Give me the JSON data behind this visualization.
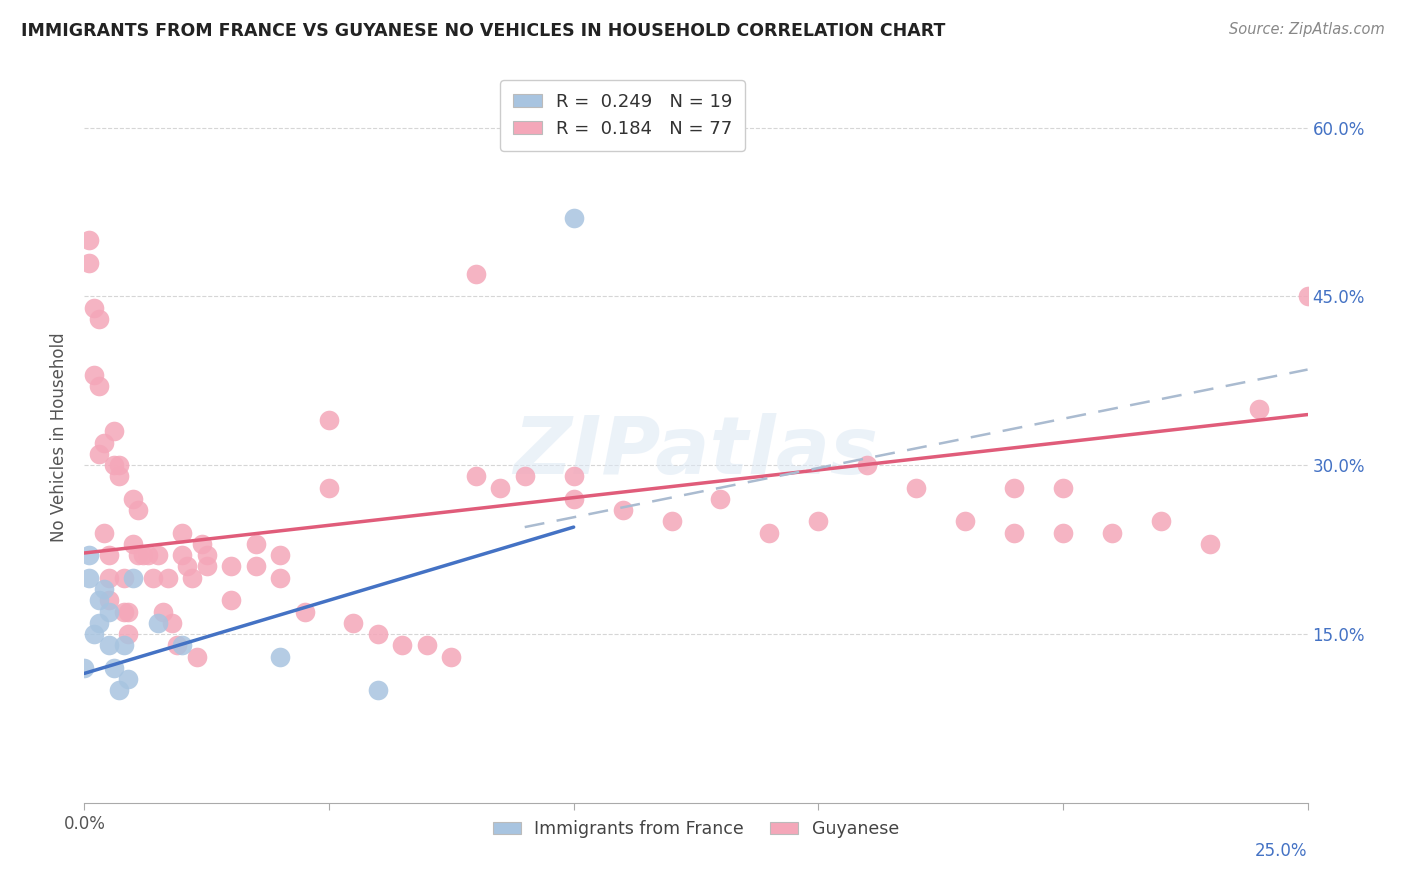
{
  "title": "IMMIGRANTS FROM FRANCE VS GUYANESE NO VEHICLES IN HOUSEHOLD CORRELATION CHART",
  "source": "Source: ZipAtlas.com",
  "ylabel": "No Vehicles in Household",
  "xlim": [
    0.0,
    0.25
  ],
  "ylim": [
    0.0,
    0.65
  ],
  "y_ticks_right": [
    0.15,
    0.3,
    0.45,
    0.6
  ],
  "y_tick_labels_right": [
    "15.0%",
    "30.0%",
    "45.0%",
    "60.0%"
  ],
  "legend_R1": "0.249",
  "legend_N1": "19",
  "legend_R2": "0.184",
  "legend_N2": "77",
  "color_france": "#a8c4e0",
  "color_guyanese": "#f4a7b9",
  "line_color_france": "#4472c4",
  "line_color_guyanese": "#e05c7a",
  "line_color_dashed": "#aabbd0",
  "background_color": "#ffffff",
  "grid_color": "#cccccc",
  "watermark_text": "ZIPatlas",
  "france_x": [
    0.0,
    0.001,
    0.001,
    0.002,
    0.003,
    0.003,
    0.004,
    0.005,
    0.005,
    0.006,
    0.007,
    0.008,
    0.009,
    0.01,
    0.015,
    0.02,
    0.04,
    0.06,
    0.1
  ],
  "france_y": [
    0.12,
    0.2,
    0.22,
    0.15,
    0.18,
    0.16,
    0.19,
    0.17,
    0.14,
    0.12,
    0.1,
    0.14,
    0.11,
    0.2,
    0.16,
    0.14,
    0.13,
    0.1,
    0.52
  ],
  "guyanese_x": [
    0.001,
    0.001,
    0.002,
    0.002,
    0.003,
    0.003,
    0.003,
    0.004,
    0.004,
    0.005,
    0.005,
    0.005,
    0.006,
    0.006,
    0.007,
    0.007,
    0.008,
    0.008,
    0.009,
    0.009,
    0.01,
    0.01,
    0.011,
    0.011,
    0.012,
    0.013,
    0.014,
    0.015,
    0.016,
    0.017,
    0.018,
    0.019,
    0.02,
    0.02,
    0.021,
    0.022,
    0.023,
    0.024,
    0.025,
    0.025,
    0.03,
    0.03,
    0.035,
    0.035,
    0.04,
    0.04,
    0.045,
    0.05,
    0.05,
    0.055,
    0.06,
    0.065,
    0.07,
    0.075,
    0.08,
    0.08,
    0.085,
    0.09,
    0.1,
    0.1,
    0.11,
    0.12,
    0.13,
    0.14,
    0.15,
    0.16,
    0.17,
    0.18,
    0.19,
    0.19,
    0.2,
    0.2,
    0.21,
    0.22,
    0.23,
    0.24,
    0.25
  ],
  "guyanese_y": [
    0.5,
    0.48,
    0.44,
    0.38,
    0.43,
    0.37,
    0.31,
    0.32,
    0.24,
    0.22,
    0.2,
    0.18,
    0.33,
    0.3,
    0.3,
    0.29,
    0.2,
    0.17,
    0.17,
    0.15,
    0.27,
    0.23,
    0.26,
    0.22,
    0.22,
    0.22,
    0.2,
    0.22,
    0.17,
    0.2,
    0.16,
    0.14,
    0.24,
    0.22,
    0.21,
    0.2,
    0.13,
    0.23,
    0.22,
    0.21,
    0.21,
    0.18,
    0.23,
    0.21,
    0.22,
    0.2,
    0.17,
    0.34,
    0.28,
    0.16,
    0.15,
    0.14,
    0.14,
    0.13,
    0.47,
    0.29,
    0.28,
    0.29,
    0.29,
    0.27,
    0.26,
    0.25,
    0.27,
    0.24,
    0.25,
    0.3,
    0.28,
    0.25,
    0.28,
    0.24,
    0.28,
    0.24,
    0.24,
    0.25,
    0.23,
    0.35,
    0.45
  ],
  "france_trend_x0": 0.0,
  "france_trend_y0": 0.115,
  "france_trend_x1": 0.1,
  "france_trend_y1": 0.245,
  "guyanese_trend_x0": 0.0,
  "guyanese_trend_y0": 0.222,
  "guyanese_trend_x1": 0.25,
  "guyanese_trend_y1": 0.345,
  "dashed_trend_x0": 0.09,
  "dashed_trend_y0": 0.245,
  "dashed_trend_x1": 0.25,
  "dashed_trend_y1": 0.385
}
